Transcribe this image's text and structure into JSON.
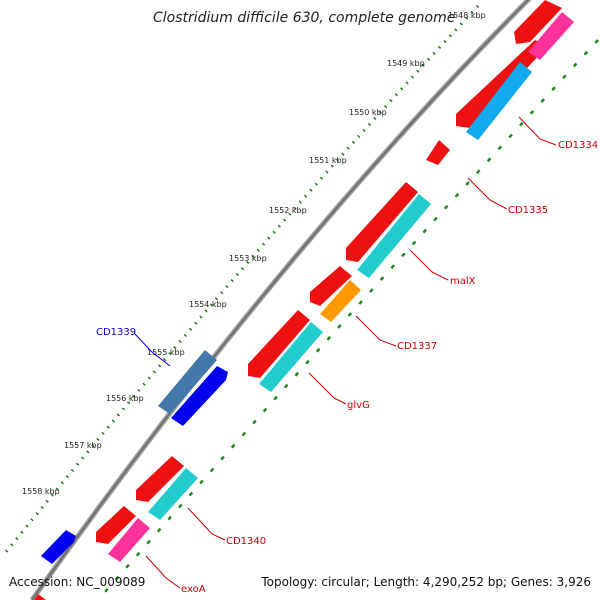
{
  "title": "Clostridium difficile 630, complete genome",
  "footer": {
    "accession": "Accession: NC_009089",
    "summary": "Topology: circular; Length: 4,290,252 bp; Genes: 3,926"
  },
  "ticks": [
    "1548 kbp",
    "1549 kbp",
    "1550 kbp",
    "1551 kbp",
    "1552 kbp",
    "1553 kbp",
    "1554 kbp",
    "1555 kbp",
    "1556 kbp",
    "1557 kbp",
    "1558 kbp"
  ],
  "gene_labels": [
    {
      "name": "CD1334",
      "color": "#cc0000"
    },
    {
      "name": "CD1335",
      "color": "#cc0000"
    },
    {
      "name": "malX",
      "color": "#cc0000"
    },
    {
      "name": "CD1337",
      "color": "#cc0000"
    },
    {
      "name": "glvG",
      "color": "#cc0000"
    },
    {
      "name": "CD1339",
      "color": "#0000cc"
    },
    {
      "name": "CD1340",
      "color": "#cc0000"
    },
    {
      "name": "exoA",
      "color": "#cc0000"
    }
  ],
  "colors": {
    "red": "#ee1111",
    "pink": "#ff3399",
    "cyan": "#22cccc",
    "sky": "#11aaee",
    "orange": "#ff9900",
    "blue": "#0000ee",
    "steel": "#4477aa",
    "backbone": "#888888",
    "tick_green": "#1a7a1a"
  }
}
